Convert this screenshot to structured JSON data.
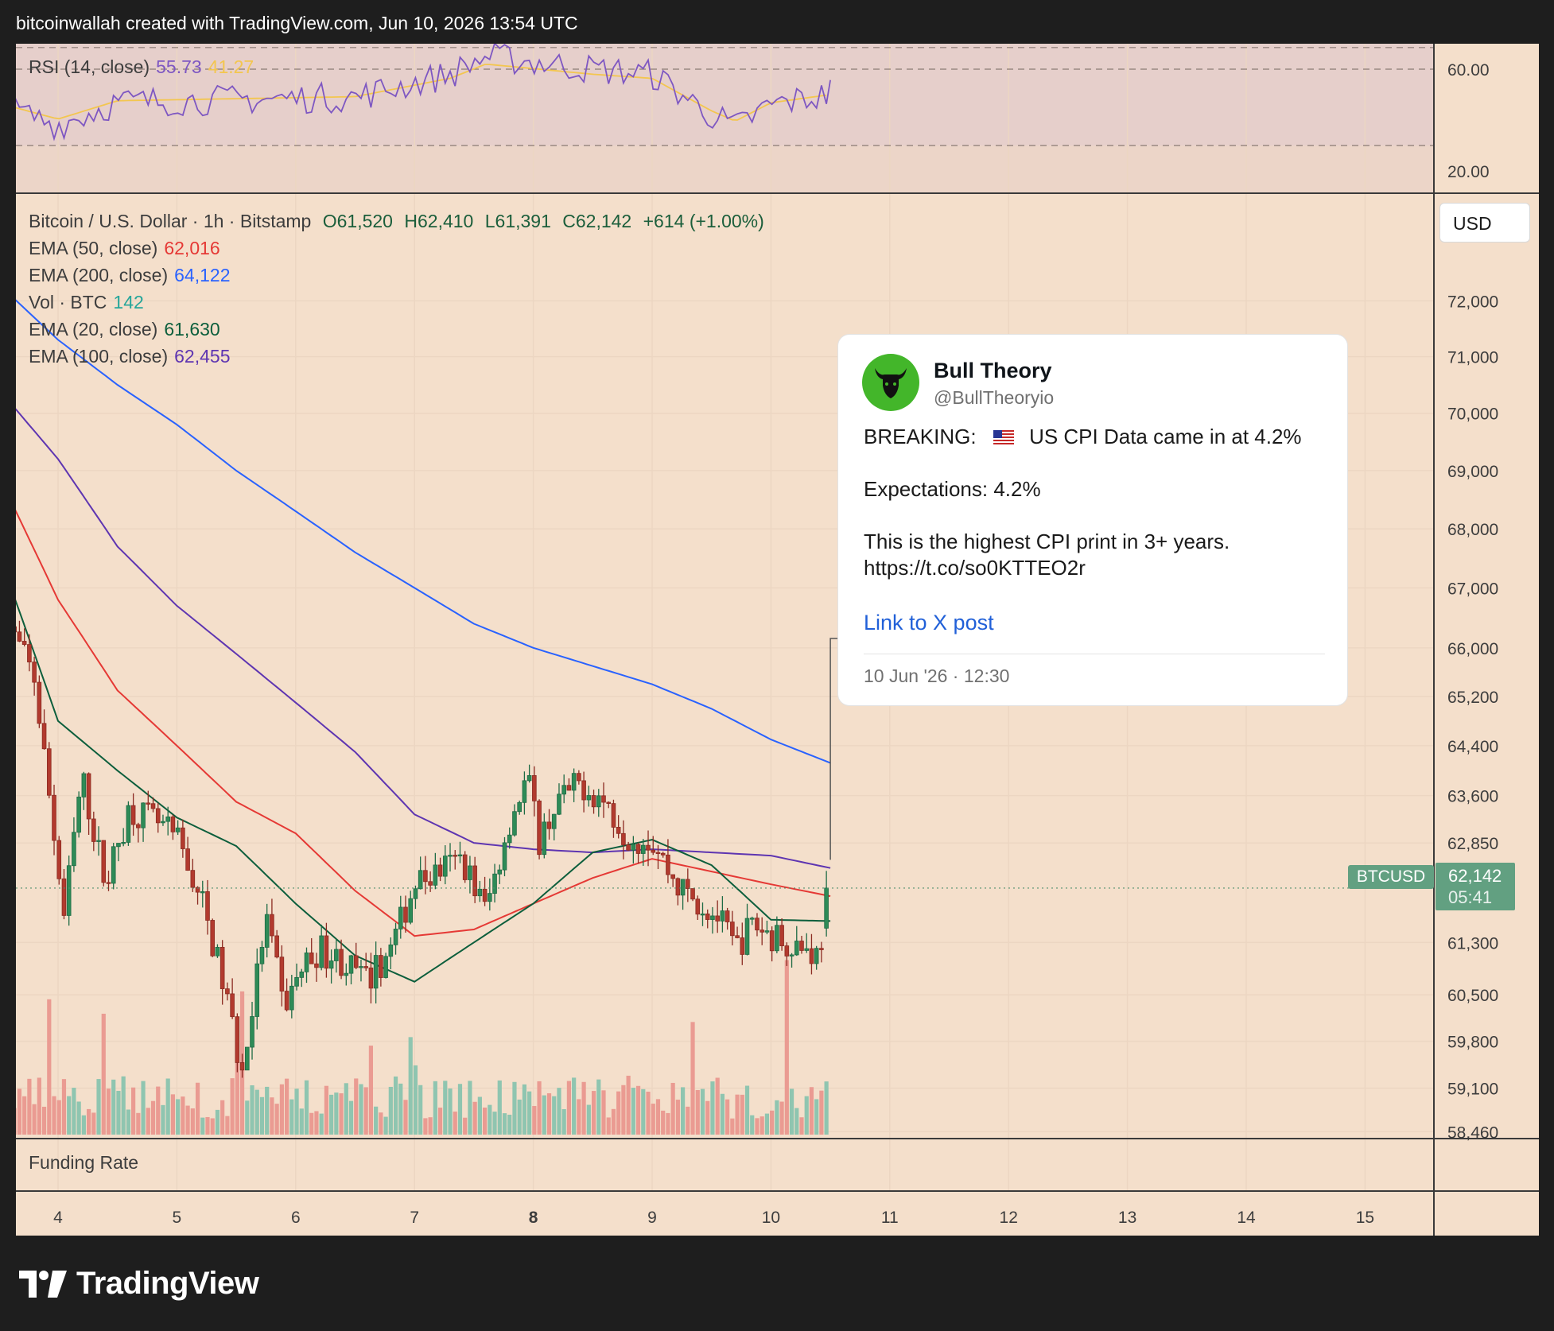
{
  "header": {
    "text": "bitcoinwallah created with TradingView.com, Jun 10, 2026 13:54 UTC"
  },
  "rsi": {
    "label": "RSI (14, close)",
    "value": "55.73",
    "ma_value": "41.27",
    "value_color": "#7e57c2",
    "ma_color": "#f3c64f",
    "ticks": [
      "60.00",
      "20.00"
    ]
  },
  "main": {
    "symbol_line": "Bitcoin / U.S. Dollar · 1h · Bitstamp",
    "ohlc": {
      "o": "O61,520",
      "h": "H62,410",
      "l": "L61,391",
      "c": "C62,142",
      "change": "+614 (+1.00%)"
    },
    "indicators": [
      {
        "label": "EMA (50, close)",
        "value": "62,016",
        "color": "#e53935"
      },
      {
        "label": "EMA (200, close)",
        "value": "64,122",
        "color": "#2962ff"
      },
      {
        "label": "Vol · BTC",
        "value": "142",
        "color": "#26a69a"
      },
      {
        "label": "EMA (20, close)",
        "value": "61,630",
        "color": "#0c5e3c"
      },
      {
        "label": "EMA (100, close)",
        "value": "62,455",
        "color": "#5e35b1"
      }
    ],
    "currency": "USD",
    "price_ticks": [
      "72,000",
      "71,000",
      "70,000",
      "69,000",
      "68,000",
      "67,000",
      "66,000",
      "65,200",
      "64,400",
      "63,600",
      "62,850",
      "61,300",
      "60,500",
      "59,800",
      "59,100",
      "58,460"
    ],
    "symbol_tag": "BTCUSD",
    "last_price": "62,142",
    "countdown": "05:41"
  },
  "funding": {
    "label": "Funding Rate"
  },
  "x_ticks": [
    "4",
    "5",
    "6",
    "7",
    "8",
    "9",
    "10",
    "11",
    "12",
    "13",
    "14",
    "15"
  ],
  "tweet": {
    "name": "Bull Theory",
    "handle": "@BullTheoryio",
    "line1_prefix": "BREAKING:",
    "flag_icon": "us-flag-icon",
    "line1_text": "US CPI Data came in at 4.2%",
    "line2": "Expectations: 4.2%",
    "line3": "This is the highest CPI print in 3+ years.",
    "line4": "https://t.co/so0KTTEO2r",
    "link_text": "Link to X post",
    "date": "10 Jun '26 · 12:30"
  },
  "brand": {
    "text": "TradingView"
  },
  "chart_data": {
    "type": "candlestick",
    "symbol": "Bitcoin / U.S. Dollar",
    "interval": "1h",
    "exchange": "Bitstamp",
    "x_axis": {
      "ticks": [
        "4",
        "5",
        "6",
        "7",
        "8",
        "9",
        "10",
        "11",
        "12",
        "13",
        "14",
        "15"
      ],
      "range_days": [
        3.55,
        15.45
      ]
    },
    "y_axis": {
      "scale": "log",
      "range": [
        58300,
        73500
      ],
      "ticks": [
        72000,
        71000,
        70000,
        69000,
        68000,
        67000,
        66000,
        65200,
        64400,
        63600,
        62850,
        61300,
        60500,
        59800,
        59100,
        58460
      ]
    },
    "last": {
      "open": 61520,
      "high": 62410,
      "low": 61391,
      "close": 62142,
      "change": 614,
      "change_pct": 1.0
    },
    "ema_anchors": {
      "day": [
        3.55,
        4.0,
        4.5,
        5.0,
        5.5,
        6.0,
        6.5,
        7.0,
        7.5,
        8.0,
        8.5,
        9.0,
        9.5,
        10.0,
        10.5
      ],
      "ema20": [
        67300,
        64800,
        64000,
        63250,
        62800,
        61900,
        61100,
        60700,
        61300,
        61900,
        62700,
        62900,
        62500,
        61650,
        61630
      ],
      "ema50": [
        68700,
        66800,
        65300,
        64400,
        63500,
        63000,
        62100,
        61400,
        61500,
        61900,
        62300,
        62600,
        62400,
        62200,
        62016
      ],
      "ema100": [
        70300,
        69200,
        67700,
        66700,
        65900,
        65100,
        64300,
        63300,
        62850,
        62750,
        62700,
        62750,
        62700,
        62650,
        62455
      ],
      "ema200": [
        72200,
        71300,
        70500,
        69800,
        69000,
        68300,
        67600,
        67000,
        66400,
        66000,
        65700,
        65400,
        65000,
        64500,
        64122
      ]
    },
    "candle_close_path": {
      "day": [
        3.55,
        3.8,
        4.05,
        4.2,
        4.4,
        4.6,
        4.8,
        5.0,
        5.2,
        5.4,
        5.55,
        5.75,
        5.9,
        6.05,
        6.2,
        6.4,
        6.6,
        6.8,
        7.0,
        7.2,
        7.4,
        7.6,
        7.8,
        7.95,
        8.05,
        8.2,
        8.4,
        8.6,
        8.8,
        9.0,
        9.2,
        9.4,
        9.55,
        9.7,
        9.85,
        10.0,
        10.2,
        10.4,
        10.5
      ],
      "close": [
        66500,
        65500,
        61700,
        63900,
        62200,
        63400,
        63200,
        62900,
        62000,
        60600,
        59300,
        61700,
        60300,
        60900,
        61200,
        61000,
        60700,
        61200,
        62200,
        62400,
        62600,
        61800,
        63200,
        63900,
        62900,
        63500,
        63800,
        63500,
        62950,
        62900,
        62200,
        61900,
        61700,
        61200,
        61600,
        61400,
        61300,
        61100,
        62142
      ]
    },
    "rsi": {
      "length": 14,
      "value": 55.73,
      "ma": 41.27,
      "range": [
        15,
        70
      ],
      "bands": [
        30,
        70
      ]
    },
    "volume": {
      "unit": "BTC",
      "last": 142
    }
  }
}
